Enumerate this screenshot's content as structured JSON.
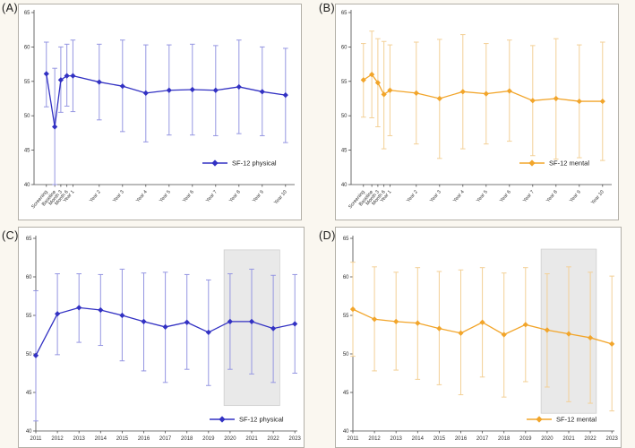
{
  "figure": {
    "background": "#faf7f0",
    "panel_background": "#ffffff",
    "panel_border": "#b3b0a8",
    "axis_color": "#4a4a4a",
    "tick_label_color": "#333333",
    "shaded_fill": "#e9e9e9",
    "shaded_border": "#cfcfcf"
  },
  "panels": [
    {
      "letter": "(A)"
    },
    {
      "letter": "(B)"
    },
    {
      "letter": "(C)"
    },
    {
      "letter": "(D)"
    }
  ],
  "chart_data": [
    {
      "panel": "A",
      "type": "line",
      "axis": "visit",
      "legend": "SF-12 physical",
      "color": "#3231c3",
      "error_color": "#9596e2",
      "ylim": [
        40,
        65
      ],
      "yticks": [
        40,
        45,
        50,
        55,
        60,
        65
      ],
      "x": [
        -0.27,
        0.09,
        0.35,
        0.61,
        0.87,
        2,
        3,
        4,
        5,
        6,
        7,
        8,
        9,
        10
      ],
      "labels": [
        "Screening",
        "Baseline",
        "Month 3",
        "Month 6",
        "Year 1",
        "Year 2",
        "Year 3",
        "Year 4",
        "Year 5",
        "Year 6",
        "Year 7",
        "Year 8",
        "Year 9",
        "Year 10"
      ],
      "values": [
        56.1,
        48.4,
        55.2,
        55.8,
        55.8,
        54.9,
        54.3,
        53.3,
        53.7,
        53.8,
        53.7,
        54.2,
        53.5,
        53.0
      ],
      "err_low": [
        51.3,
        40.0,
        50.5,
        51.4,
        50.6,
        49.4,
        47.7,
        46.2,
        47.2,
        47.2,
        47.1,
        47.4,
        47.1,
        46.1
      ],
      "err_high": [
        60.7,
        56.9,
        60.0,
        60.4,
        61.0,
        60.4,
        61.0,
        60.3,
        60.3,
        60.4,
        60.2,
        61.0,
        60.0,
        59.8
      ]
    },
    {
      "panel": "B",
      "type": "line",
      "axis": "visit",
      "legend": "SF-12 mental",
      "color": "#f2a52a",
      "error_color": "#f3d096",
      "ylim": [
        40,
        65
      ],
      "yticks": [
        40,
        45,
        50,
        55,
        60,
        65
      ],
      "x": [
        -0.27,
        0.09,
        0.35,
        0.61,
        0.87,
        2,
        3,
        4,
        5,
        6,
        7,
        8,
        9,
        10
      ],
      "labels": [
        "Screening",
        "Baseline",
        "Month 3",
        "Month 6",
        "Year 1",
        "Year 2",
        "Year 3",
        "Year 4",
        "Year 5",
        "Year 6",
        "Year 7",
        "Year 8",
        "Year 9",
        "Year 10"
      ],
      "values": [
        55.2,
        56.0,
        54.8,
        53.1,
        53.7,
        53.3,
        52.5,
        53.5,
        53.2,
        53.6,
        52.2,
        52.5,
        52.1,
        52.1
      ],
      "err_low": [
        49.8,
        49.7,
        48.4,
        45.2,
        47.1,
        45.9,
        43.8,
        45.2,
        45.9,
        46.3,
        44.2,
        43.7,
        43.9,
        43.5
      ],
      "err_high": [
        60.5,
        62.3,
        61.2,
        60.8,
        60.3,
        60.7,
        61.1,
        61.8,
        60.5,
        61.0,
        60.2,
        61.2,
        60.3,
        60.7
      ]
    },
    {
      "panel": "C",
      "type": "line",
      "axis": "year",
      "legend": "SF-12 physical",
      "color": "#3231c3",
      "error_color": "#9596e2",
      "ylim": [
        40,
        65
      ],
      "yticks": [
        40,
        45,
        50,
        55,
        60,
        65
      ],
      "x": [
        2011,
        2012,
        2013,
        2014,
        2015,
        2016,
        2017,
        2018,
        2019,
        2020,
        2021,
        2022,
        2023
      ],
      "labels": [
        "2011",
        "2012",
        "2013",
        "2014",
        "2015",
        "2016",
        "2017",
        "2018",
        "2019",
        "2020",
        "2021",
        "2022",
        "2023"
      ],
      "values": [
        49.8,
        55.2,
        56.0,
        55.7,
        55.0,
        54.2,
        53.5,
        54.1,
        52.8,
        54.2,
        54.2,
        53.3,
        53.9
      ],
      "err_low": [
        41.3,
        49.9,
        51.5,
        51.1,
        49.1,
        47.8,
        46.3,
        48.0,
        45.9,
        48.0,
        47.4,
        46.3,
        47.5
      ],
      "err_high": [
        58.2,
        60.4,
        60.4,
        60.3,
        61.0,
        60.5,
        60.6,
        60.3,
        59.6,
        60.4,
        61.0,
        60.2,
        60.3
      ],
      "shaded_region": {
        "x0": 2019.72,
        "x1": 2022.3,
        "y0": 43.3,
        "y1": 63.5
      }
    },
    {
      "panel": "D",
      "type": "line",
      "axis": "year",
      "legend": "SF-12 mental",
      "color": "#f2a52a",
      "error_color": "#f3d096",
      "ylim": [
        40,
        65
      ],
      "yticks": [
        40,
        45,
        50,
        55,
        60,
        65
      ],
      "x": [
        2011,
        2012,
        2013,
        2014,
        2015,
        2016,
        2017,
        2018,
        2019,
        2020,
        2021,
        2022,
        2023
      ],
      "labels": [
        "2011",
        "2012",
        "2013",
        "2014",
        "2015",
        "2016",
        "2017",
        "2018",
        "2019",
        "2020",
        "2021",
        "2022",
        "2023"
      ],
      "values": [
        55.8,
        54.5,
        54.2,
        54.0,
        53.3,
        52.7,
        54.1,
        52.5,
        53.8,
        53.1,
        52.6,
        52.1,
        51.3
      ],
      "err_low": [
        49.7,
        47.8,
        47.9,
        46.7,
        46.0,
        44.7,
        47.0,
        44.4,
        46.4,
        45.7,
        43.8,
        43.6,
        42.6
      ],
      "err_high": [
        61.9,
        61.3,
        60.6,
        61.2,
        60.7,
        60.9,
        61.2,
        60.5,
        61.2,
        60.4,
        61.3,
        60.6,
        60.1
      ],
      "shaded_region": {
        "x0": 2019.72,
        "x1": 2022.28,
        "y0": 42.3,
        "y1": 63.6
      }
    }
  ]
}
